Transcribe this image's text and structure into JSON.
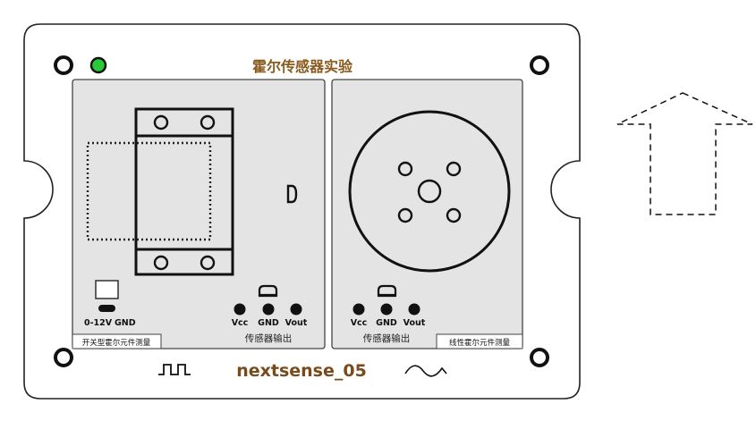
{
  "board": {
    "title": "霍尔传感器实验",
    "brand": "nextsense_05",
    "power_led_color": "#29c93a",
    "title_color": "#8a5a1e",
    "brand_color": "#7a4a1a"
  },
  "left_panel": {
    "power_label": "0-12V",
    "gnd_label": "GND",
    "pins": [
      "Vcc",
      "GND",
      "Vout"
    ],
    "output_label": "传感器输出",
    "tag": "开关型霍尔元件测量"
  },
  "right_panel": {
    "pins": [
      "Vcc",
      "GND",
      "Vout"
    ],
    "output_label": "传感器输出",
    "tag": "线性霍尔元件测量"
  },
  "icons": {
    "digital_signal": "square-wave-icon",
    "analog_signal": "sine-wave-icon",
    "direction": "dashed-up-arrow-icon"
  }
}
